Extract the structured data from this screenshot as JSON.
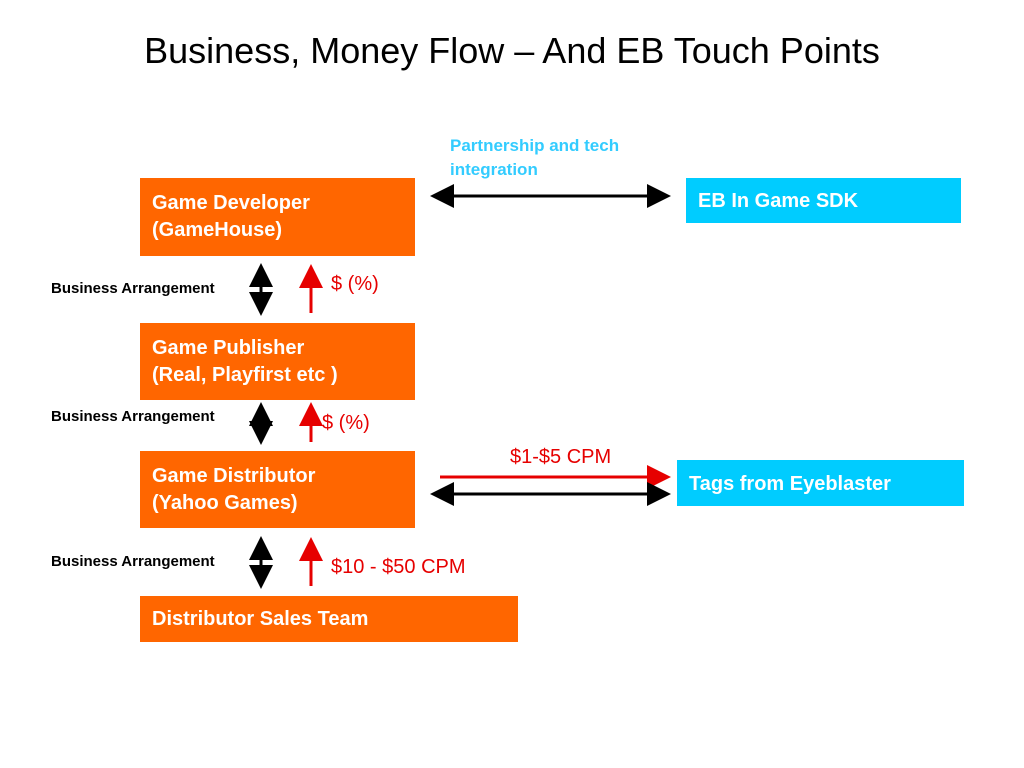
{
  "title": "Business, Money Flow  – And EB Touch Points",
  "colors": {
    "entity_box": "#ff6600",
    "eb_box": "#00ccff",
    "money_arrow": "#e60000",
    "relation_arrow": "#000000",
    "partnership_text": "#33ccff"
  },
  "boxes": {
    "game_developer": {
      "line1": "Game Developer",
      "line2": "(GameHouse)"
    },
    "game_publisher": {
      "line1": "Game Publisher",
      "line2": "(Real, Playfirst etc )"
    },
    "game_distributor": {
      "line1": "Game Distributor",
      "line2": "(Yahoo Games)"
    },
    "distributor_sales": {
      "line1": "Distributor Sales Team"
    },
    "eb_sdk": {
      "line1": "EB In Game SDK"
    },
    "eb_tags": {
      "line1": "Tags from Eyeblaster"
    }
  },
  "labels": {
    "business_arrangement_1": "Business Arrangement",
    "business_arrangement_2": "Business Arrangement",
    "business_arrangement_3": "Business Arrangement",
    "money_1": "$ (%)",
    "money_2": "$ (%)",
    "money_3": "$10 - $50 CPM",
    "cpm_tags": "$1-$5 CPM",
    "partnership_line1": "Partnership and tech",
    "partnership_line2": "integration"
  }
}
